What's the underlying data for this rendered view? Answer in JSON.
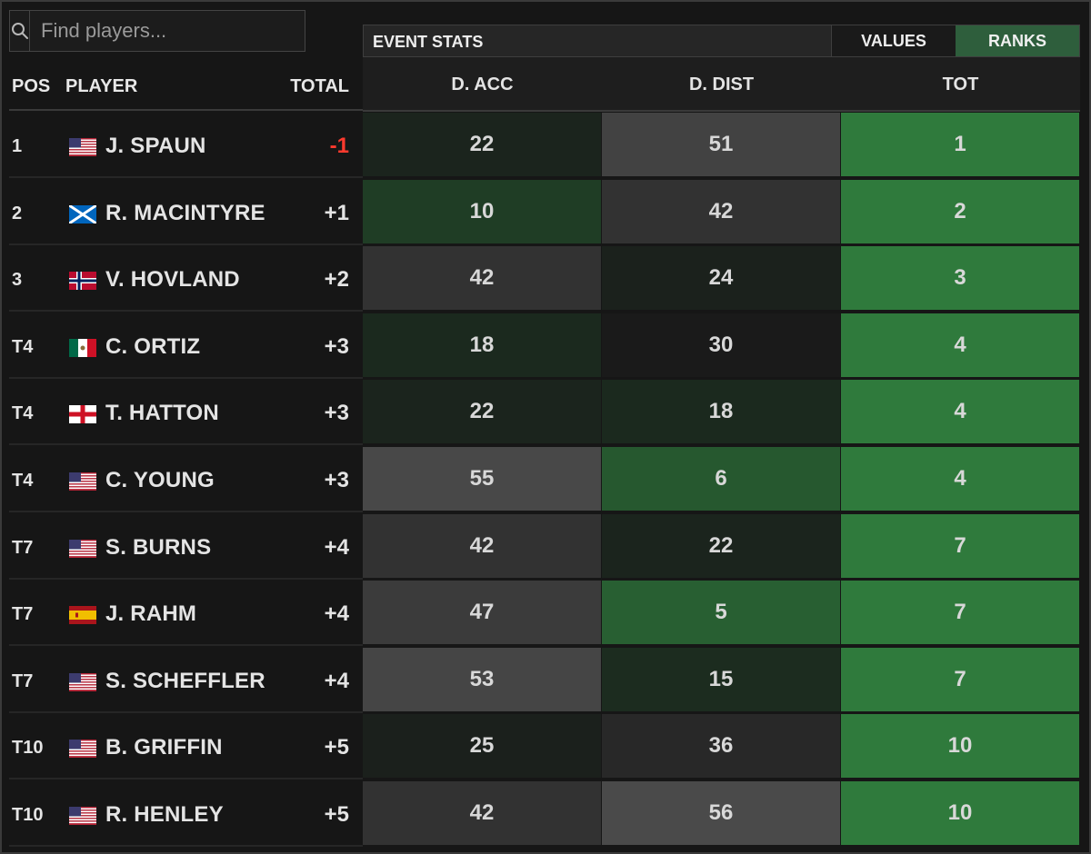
{
  "search": {
    "placeholder": "Find players..."
  },
  "left_header": {
    "pos": "POS",
    "player": "PLAYER",
    "total": "TOTAL"
  },
  "stats_bar": {
    "title": "EVENT STATS",
    "values_label": "VALUES",
    "ranks_label": "RANKS",
    "active_toggle": "RANKS"
  },
  "stat_headers": [
    "D. ACC",
    "D. DIST",
    "TOT"
  ],
  "players": [
    {
      "pos": "1",
      "flag": "usa",
      "name": "J. SPAUN",
      "total": "-1",
      "dacc": "22",
      "ddist": "51",
      "tot": "1"
    },
    {
      "pos": "2",
      "flag": "scotland",
      "name": "R. MACINTYRE",
      "total": "+1",
      "dacc": "10",
      "ddist": "42",
      "tot": "2"
    },
    {
      "pos": "3",
      "flag": "norway",
      "name": "V. HOVLAND",
      "total": "+2",
      "dacc": "42",
      "ddist": "24",
      "tot": "3"
    },
    {
      "pos": "T4",
      "flag": "mexico",
      "name": "C. ORTIZ",
      "total": "+3",
      "dacc": "18",
      "ddist": "30",
      "tot": "4"
    },
    {
      "pos": "T4",
      "flag": "england",
      "name": "T. HATTON",
      "total": "+3",
      "dacc": "22",
      "ddist": "18",
      "tot": "4"
    },
    {
      "pos": "T4",
      "flag": "usa",
      "name": "C. YOUNG",
      "total": "+3",
      "dacc": "55",
      "ddist": "6",
      "tot": "4"
    },
    {
      "pos": "T7",
      "flag": "usa",
      "name": "S. BURNS",
      "total": "+4",
      "dacc": "42",
      "ddist": "22",
      "tot": "7"
    },
    {
      "pos": "T7",
      "flag": "spain",
      "name": "J. RAHM",
      "total": "+4",
      "dacc": "47",
      "ddist": "5",
      "tot": "7"
    },
    {
      "pos": "T7",
      "flag": "usa",
      "name": "S. SCHEFFLER",
      "total": "+4",
      "dacc": "53",
      "ddist": "15",
      "tot": "7"
    },
    {
      "pos": "T10",
      "flag": "usa",
      "name": "B. GRIFFIN",
      "total": "+5",
      "dacc": "25",
      "ddist": "36",
      "tot": "10"
    },
    {
      "pos": "T10",
      "flag": "usa",
      "name": "R. HENLEY",
      "total": "+5",
      "dacc": "42",
      "ddist": "56",
      "tot": "10"
    }
  ],
  "colors": {
    "rank_best": "#2f7a3c",
    "rank_worst": "#4a4a4a",
    "negative_total": "#ff3a2e",
    "active_toggle": "#2e5e3c"
  }
}
